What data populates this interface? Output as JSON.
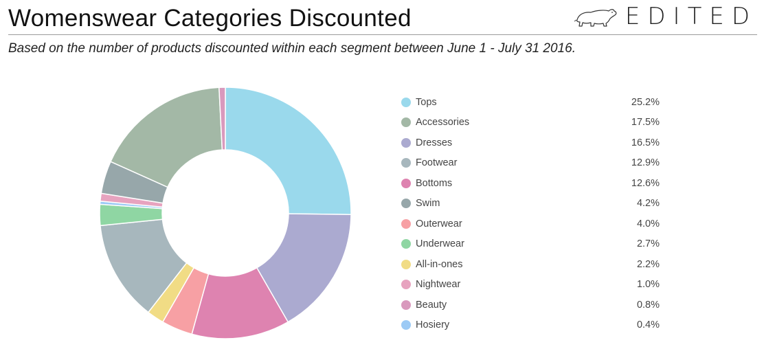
{
  "header": {
    "title": "Womenswear Categories Discounted",
    "subtitle": "Based on the number of products discounted within each segment between June 1 - July 31 2016.",
    "brand": "EDITED",
    "brand_icon": "polar-bear-icon"
  },
  "colors": {
    "Tops": "#9ad9ec",
    "Accessories": "#a3b8a6",
    "Dresses": "#abaad0",
    "Footwear": "#a7b7bd",
    "Bottoms": "#de83b0",
    "Swim": "#97a7aa",
    "Outerwear": "#f7a0a4",
    "Underwear": "#8fd6a3",
    "All-in-ones": "#f1dc85",
    "Nightwear": "#e7a3bf",
    "Beauty": "#d999bd",
    "Hosiery": "#9ccaf5"
  },
  "chart_data": {
    "type": "pie",
    "variant": "donut",
    "title": "Womenswear Categories Discounted",
    "legend": "right",
    "categories": [
      "Tops",
      "Accessories",
      "Dresses",
      "Footwear",
      "Bottoms",
      "Swim",
      "Outerwear",
      "Underwear",
      "All-in-ones",
      "Nightwear",
      "Beauty",
      "Hosiery"
    ],
    "values": [
      25.2,
      17.5,
      16.5,
      12.9,
      12.6,
      4.2,
      4.0,
      2.7,
      2.2,
      1.0,
      0.8,
      0.4
    ],
    "value_labels": [
      "25.2%",
      "17.5%",
      "16.5%",
      "12.9%",
      "12.6%",
      "4.2%",
      "4.0%",
      "2.7%",
      "2.2%",
      "1.0%",
      "0.8%",
      "0.4%"
    ],
    "slice_order_clockwise_from_top": [
      "Tops",
      "Dresses",
      "Bottoms",
      "Outerwear",
      "All-in-ones",
      "Footwear",
      "Underwear",
      "Hosiery",
      "Nightwear",
      "Swim",
      "Accessories",
      "Beauty"
    ]
  }
}
